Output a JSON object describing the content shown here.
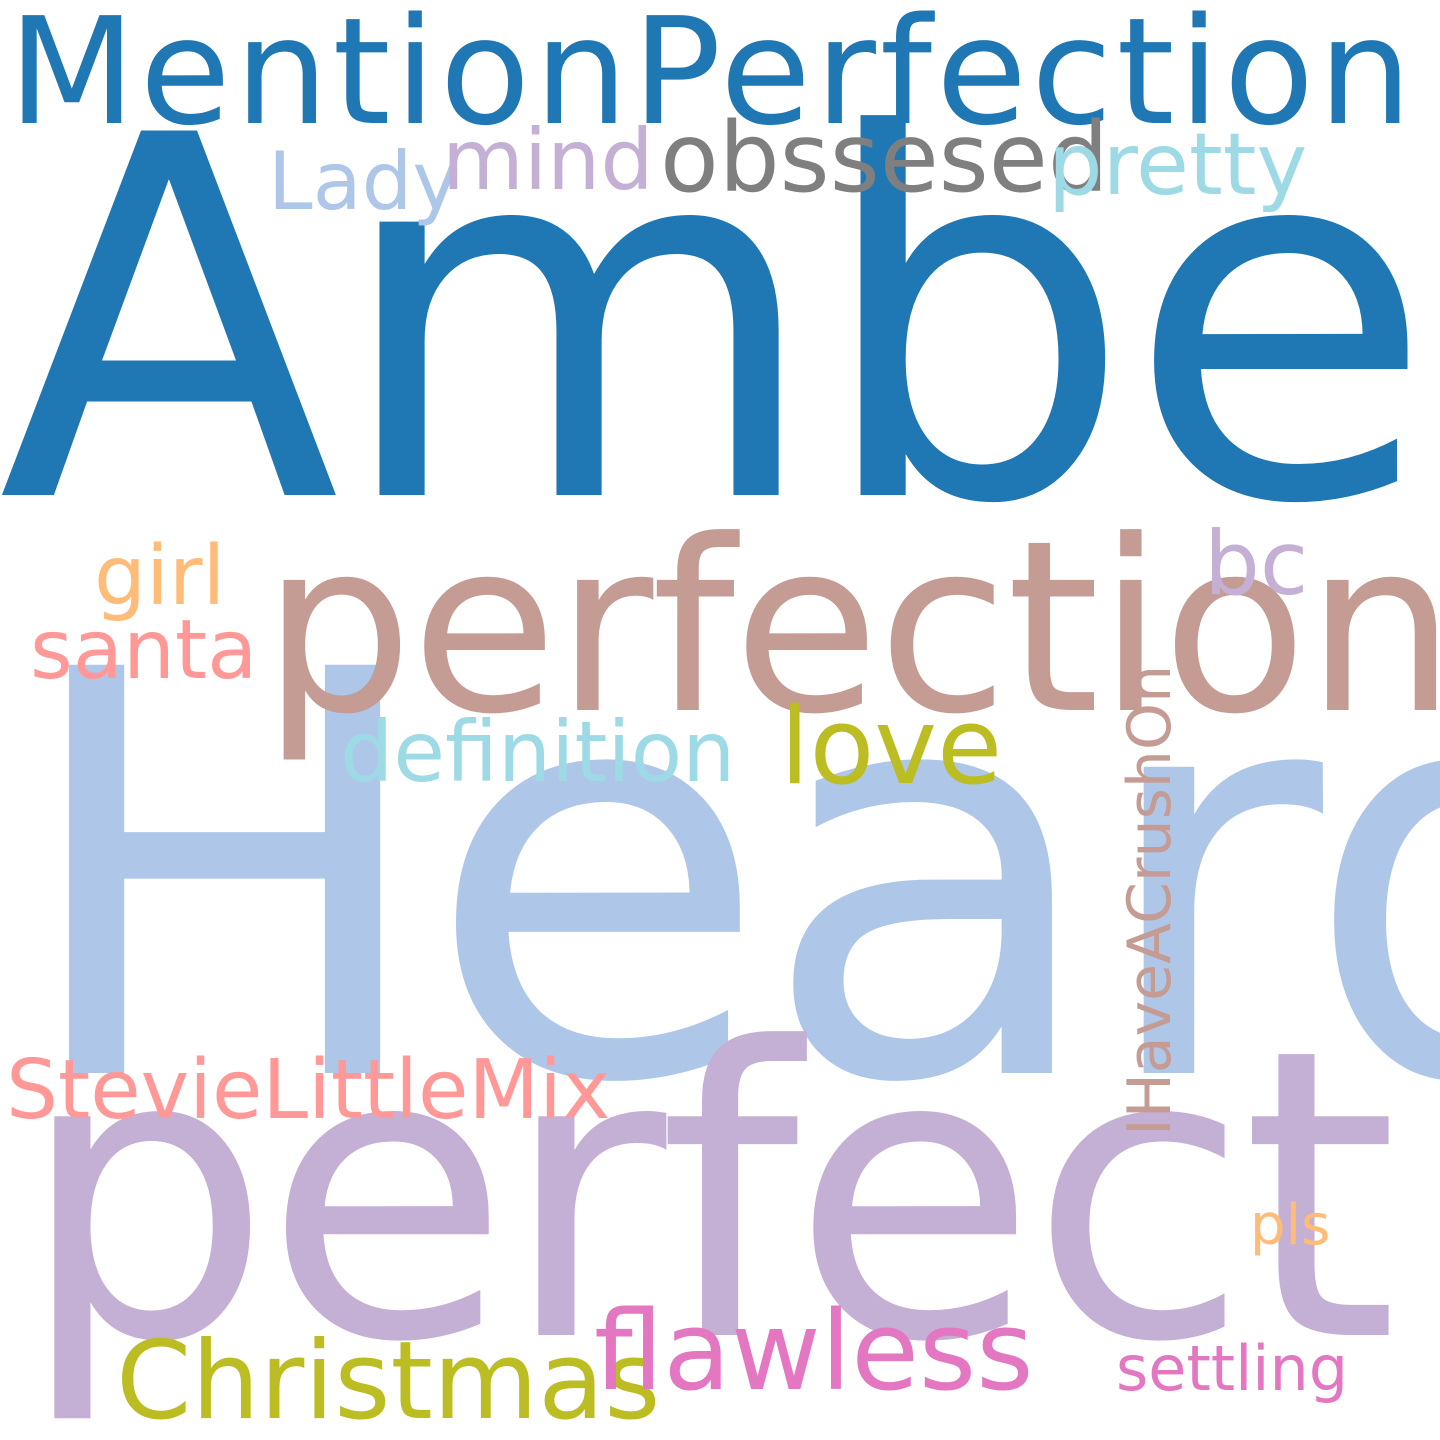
{
  "colors": {
    "background": "#ffffff",
    "dark_blue": "#1f77b4",
    "light_blue": "#aec7e8",
    "lavender": "#c5b0d5",
    "rose_brown": "#c49c94",
    "gray": "#7f7f7f",
    "sky": "#9edae5",
    "peach": "#ffbb78",
    "pink_salmon": "#ff9896",
    "olive": "#bcbd22",
    "magenta": "#e377c2"
  },
  "words": {
    "mention_perfection": "MentionPerfection",
    "amber": "Amber",
    "heard": "Heard",
    "perfect": "perfect",
    "perfection": "perfection",
    "obssesed": "obssesed",
    "pretty": "pretty",
    "lady": "Lady",
    "mind": "mind",
    "girl": "girl",
    "bc": "bc",
    "santa": "santa",
    "definition": "definition",
    "love": "love",
    "ihaveacrushon": "IHaveACrushOn",
    "stevielittlemix": "StevieLittleMix",
    "pls": "pls",
    "christmas": "Christmas",
    "flawless": "flawless",
    "settling": "settling"
  },
  "word_colors": {
    "mention_perfection": "#1f77b4",
    "amber": "#1f77b4",
    "heard": "#aec7e8",
    "perfect": "#c5b0d5",
    "perfection": "#c49c94",
    "obssesed": "#7f7f7f",
    "pretty": "#9edae5",
    "lady": "#aec7e8",
    "mind": "#c5b0d5",
    "girl": "#ffbb78",
    "bc": "#c5b0d5",
    "santa": "#ff9896",
    "definition": "#9edae5",
    "love": "#bcbd22",
    "ihaveacrushon": "#c49c94",
    "stevielittlemix": "#ff9896",
    "pls": "#ffbb78",
    "christmas": "#bcbd22",
    "flawless": "#e377c2",
    "settling": "#e377c2"
  }
}
